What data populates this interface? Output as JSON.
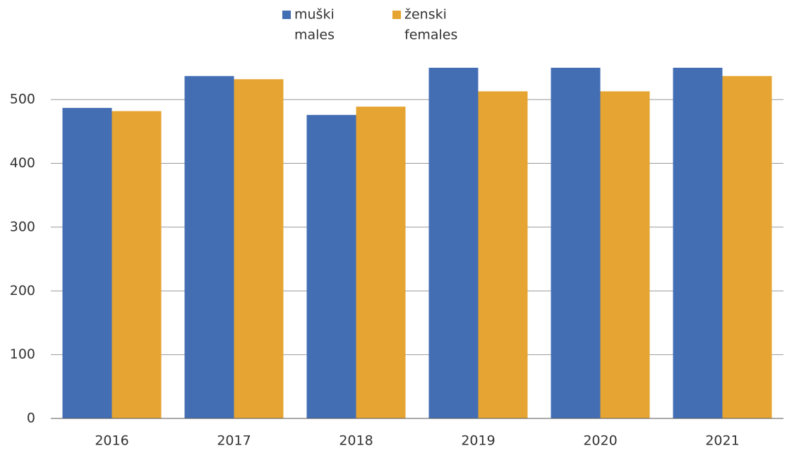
{
  "chart_data": {
    "type": "bar",
    "categories": [
      "2016",
      "2017",
      "2018",
      "2019",
      "2020",
      "2021"
    ],
    "series": [
      {
        "name": "muški",
        "name_en": "males",
        "color": "#446eb4",
        "values": [
          487,
          537,
          476,
          550,
          550,
          550
        ]
      },
      {
        "name": "ženski",
        "name_en": "females",
        "color": "#e6a532",
        "values": [
          482,
          532,
          489,
          513,
          513,
          537
        ]
      }
    ],
    "ylim": [
      0,
      550
    ],
    "yticks": [
      0,
      100,
      200,
      300,
      400,
      500
    ],
    "grid": true,
    "legend": "top"
  }
}
